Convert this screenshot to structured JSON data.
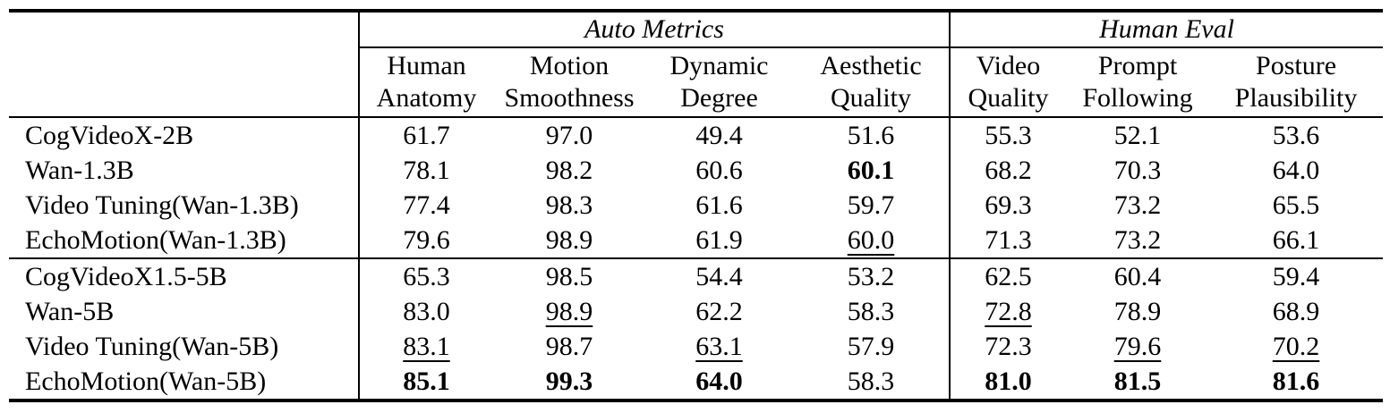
{
  "table": {
    "groups": [
      {
        "label": "Auto Metrics",
        "span": 4
      },
      {
        "label": "Human Eval",
        "span": 3
      }
    ],
    "columns": [
      {
        "line1": "Human",
        "line2": "Anatomy"
      },
      {
        "line1": "Motion",
        "line2": "Smoothness"
      },
      {
        "line1": "Dynamic",
        "line2": "Degree"
      },
      {
        "line1": "Aesthetic",
        "line2": "Quality"
      },
      {
        "line1": "Video",
        "line2": "Quality"
      },
      {
        "line1": "Prompt",
        "line2": "Following"
      },
      {
        "line1": "Posture",
        "line2": "Plausibility"
      }
    ],
    "sections": [
      {
        "rows": [
          {
            "model": "CogVideoX-2B",
            "values": [
              "61.7",
              "97.0",
              "49.4",
              "51.6",
              "55.3",
              "52.1",
              "53.6"
            ]
          },
          {
            "model": "Wan-1.3B",
            "values": [
              "78.1",
              "98.2",
              "60.6",
              "60.1",
              "68.2",
              "70.3",
              "64.0"
            ]
          },
          {
            "model": "Video Tuning(Wan-1.3B)",
            "values": [
              "77.4",
              "98.3",
              "61.6",
              "59.7",
              "69.3",
              "73.2",
              "65.5"
            ]
          },
          {
            "model": "EchoMotion(Wan-1.3B)",
            "values": [
              "79.6",
              "98.9",
              "61.9",
              "60.0",
              "71.3",
              "73.2",
              "66.1"
            ]
          }
        ]
      },
      {
        "rows": [
          {
            "model": "CogVideoX1.5-5B",
            "values": [
              "65.3",
              "98.5",
              "54.4",
              "53.2",
              "62.5",
              "60.4",
              "59.4"
            ]
          },
          {
            "model": "Wan-5B",
            "values": [
              "83.0",
              "98.9",
              "62.2",
              "58.3",
              "72.8",
              "78.9",
              "68.9"
            ]
          },
          {
            "model": "Video Tuning(Wan-5B)",
            "values": [
              "83.1",
              "98.7",
              "63.1",
              "57.9",
              "72.3",
              "79.6",
              "70.2"
            ]
          },
          {
            "model": "EchoMotion(Wan-5B)",
            "values": [
              "85.1",
              "99.3",
              "64.0",
              "58.3",
              "81.0",
              "81.5",
              "81.6"
            ]
          }
        ]
      }
    ],
    "formatting": {
      "bold": [
        "0.1.3",
        "1.3.0",
        "1.3.1",
        "1.3.2",
        "1.3.4",
        "1.3.5",
        "1.3.6"
      ],
      "underline": [
        "0.3.3",
        "1.1.1",
        "1.1.4",
        "1.2.0",
        "1.2.2",
        "1.2.5",
        "1.2.6"
      ]
    }
  }
}
